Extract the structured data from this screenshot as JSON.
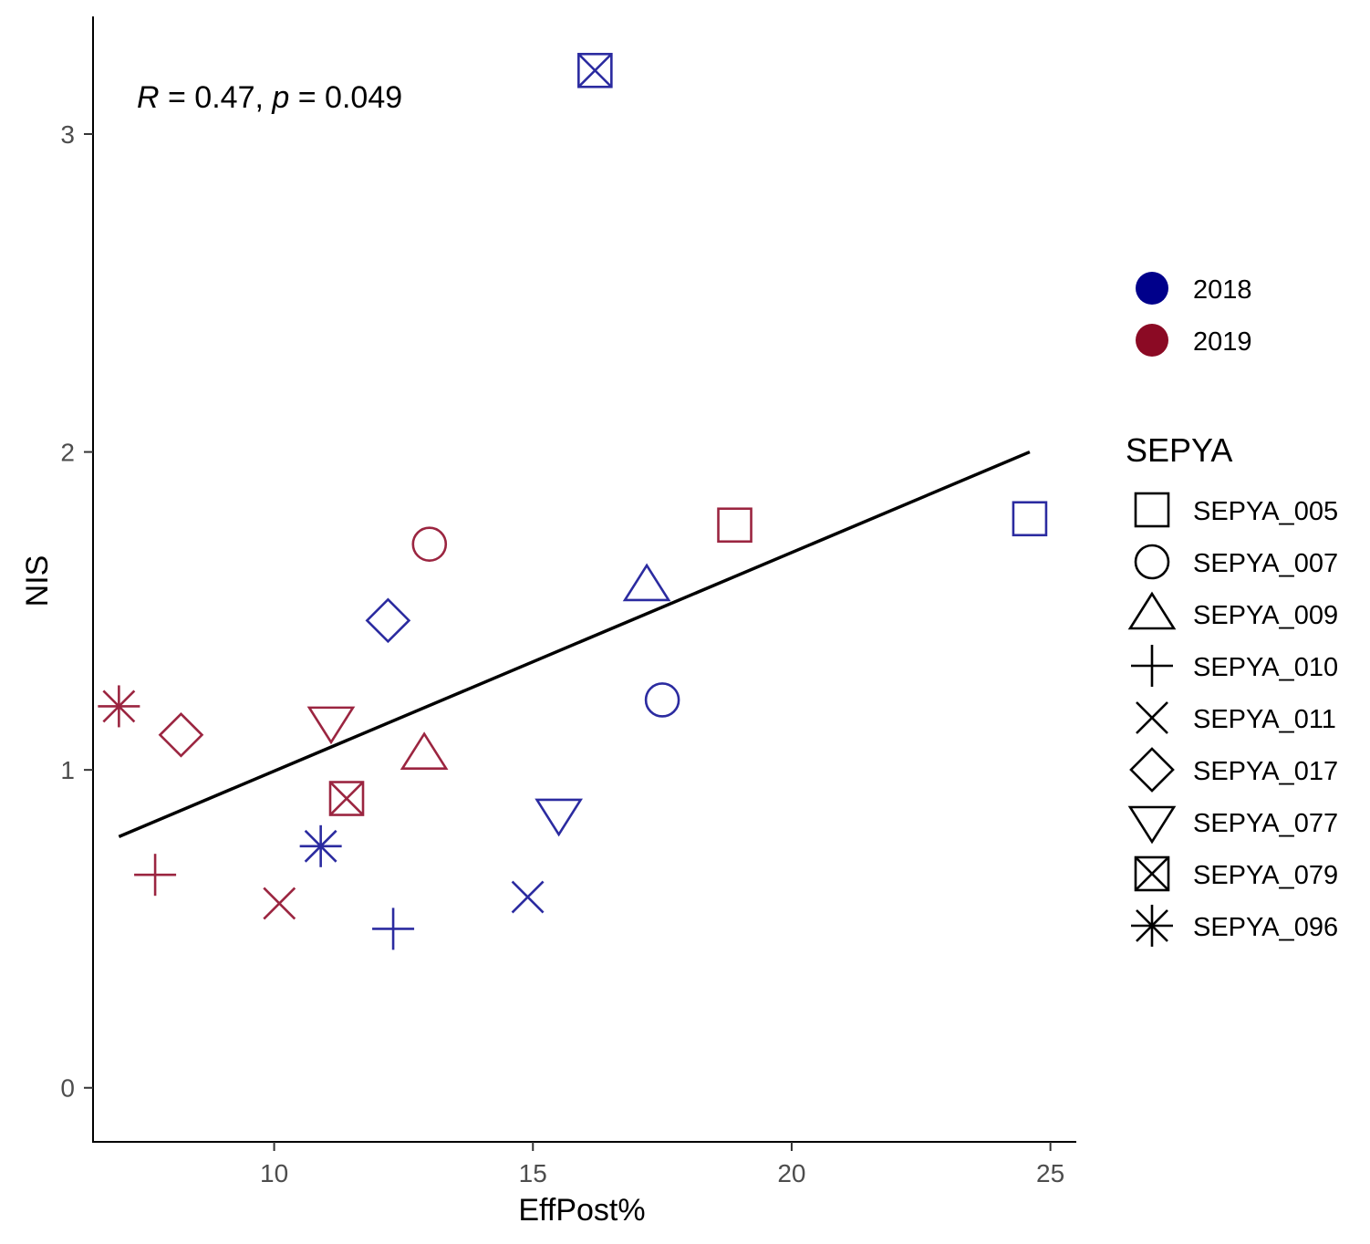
{
  "chart_data": {
    "type": "scatter",
    "title": "",
    "xlabel": "EffPost%",
    "ylabel": "NIS",
    "xlim": [
      6.5,
      25.5
    ],
    "ylim": [
      -0.17,
      3.37
    ],
    "x_ticks": [
      10,
      15,
      20,
      25
    ],
    "y_ticks": [
      0,
      1,
      2,
      3
    ],
    "x_tick_labels": [
      "10",
      "15",
      "20",
      "25"
    ],
    "y_tick_labels": [
      "0",
      "1",
      "2",
      "3"
    ],
    "grid": false,
    "annotation": {
      "r_symbol": "R",
      "r_text": " = 0.47, ",
      "p_symbol": "p",
      "p_text": " = 0.049"
    },
    "regression_line": {
      "x": [
        7.0,
        24.6
      ],
      "y": [
        0.79,
        2.0
      ]
    },
    "color_legend": {
      "title": "",
      "placement": "right",
      "items": [
        {
          "label": "2018",
          "color": "#00008B"
        },
        {
          "label": "2019",
          "color": "#8B0A24"
        }
      ]
    },
    "shape_legend": {
      "title": "SEPYA",
      "placement": "right",
      "items": [
        {
          "label": "SEPYA_005",
          "shape": "square"
        },
        {
          "label": "SEPYA_007",
          "shape": "circle"
        },
        {
          "label": "SEPYA_009",
          "shape": "triangle-up"
        },
        {
          "label": "SEPYA_010",
          "shape": "plus"
        },
        {
          "label": "SEPYA_011",
          "shape": "cross"
        },
        {
          "label": "SEPYA_017",
          "shape": "diamond"
        },
        {
          "label": "SEPYA_077",
          "shape": "triangle-down"
        },
        {
          "label": "SEPYA_079",
          "shape": "square-x"
        },
        {
          "label": "SEPYA_096",
          "shape": "asterisk"
        }
      ]
    },
    "series": [
      {
        "name": "2018",
        "color": "#2B2BA0",
        "points": [
          {
            "id": "SEPYA_005",
            "shape": "square",
            "x": 24.6,
            "y": 1.79
          },
          {
            "id": "SEPYA_007",
            "shape": "circle",
            "x": 17.5,
            "y": 1.22
          },
          {
            "id": "SEPYA_009",
            "shape": "triangle-up",
            "x": 17.2,
            "y": 1.58
          },
          {
            "id": "SEPYA_010",
            "shape": "plus",
            "x": 12.3,
            "y": 0.5
          },
          {
            "id": "SEPYA_011",
            "shape": "cross",
            "x": 14.9,
            "y": 0.6
          },
          {
            "id": "SEPYA_017",
            "shape": "diamond",
            "x": 12.2,
            "y": 1.47
          },
          {
            "id": "SEPYA_077",
            "shape": "triangle-down",
            "x": 15.5,
            "y": 0.86
          },
          {
            "id": "SEPYA_079",
            "shape": "square-x",
            "x": 16.2,
            "y": 3.2
          },
          {
            "id": "SEPYA_096",
            "shape": "asterisk",
            "x": 10.9,
            "y": 0.76
          }
        ]
      },
      {
        "name": "2019",
        "color": "#9B2540",
        "points": [
          {
            "id": "SEPYA_005",
            "shape": "square",
            "x": 18.9,
            "y": 1.77
          },
          {
            "id": "SEPYA_007",
            "shape": "circle",
            "x": 13.0,
            "y": 1.71
          },
          {
            "id": "SEPYA_009",
            "shape": "triangle-up",
            "x": 12.9,
            "y": 1.05
          },
          {
            "id": "SEPYA_010",
            "shape": "plus",
            "x": 7.7,
            "y": 0.67
          },
          {
            "id": "SEPYA_011",
            "shape": "cross",
            "x": 10.1,
            "y": 0.58
          },
          {
            "id": "SEPYA_017",
            "shape": "diamond",
            "x": 8.2,
            "y": 1.11
          },
          {
            "id": "SEPYA_077",
            "shape": "triangle-down",
            "x": 11.1,
            "y": 1.15
          },
          {
            "id": "SEPYA_079",
            "shape": "square-x",
            "x": 11.4,
            "y": 0.91
          },
          {
            "id": "SEPYA_096",
            "shape": "asterisk",
            "x": 7.0,
            "y": 1.2
          }
        ]
      }
    ]
  }
}
